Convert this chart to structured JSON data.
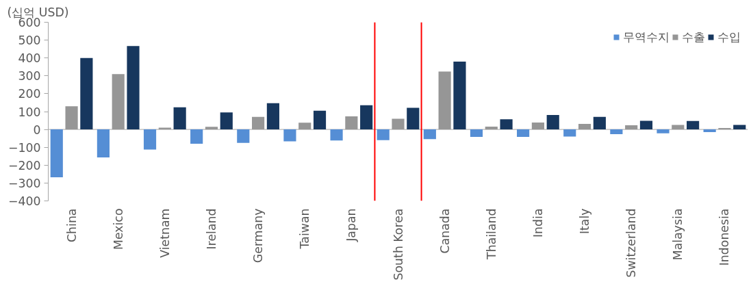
{
  "chart_data": {
    "type": "bar",
    "ylabel": "(십억 USD)",
    "categories": [
      "China",
      "Mexico",
      "Vietnam",
      "Ireland",
      "Germany",
      "Taiwan",
      "Japan",
      "South Korea",
      "Canada",
      "Thailand",
      "India",
      "Italy",
      "Switzerland",
      "Malaysia",
      "Indonesia"
    ],
    "series": [
      {
        "name": "무역수지",
        "color": "#558ed5",
        "values": [
          -268,
          -157,
          -113,
          -80,
          -75,
          -67,
          -62,
          -60,
          -54,
          -42,
          -42,
          -40,
          -26,
          -22,
          -15
        ]
      },
      {
        "name": "수출",
        "color": "#969696",
        "values": [
          130,
          310,
          10,
          15,
          70,
          38,
          73,
          60,
          324,
          16,
          39,
          31,
          23,
          25,
          8
        ]
      },
      {
        "name": "수입",
        "color": "#17375e",
        "values": [
          400,
          467,
          124,
          95,
          147,
          105,
          135,
          121,
          380,
          57,
          81,
          70,
          48,
          47,
          25
        ]
      }
    ],
    "ylim": [
      -400,
      600
    ],
    "yticks": [
      -400,
      -300,
      -200,
      -100,
      0,
      100,
      200,
      300,
      400,
      500,
      600
    ],
    "grid": false,
    "legend": "top right"
  }
}
